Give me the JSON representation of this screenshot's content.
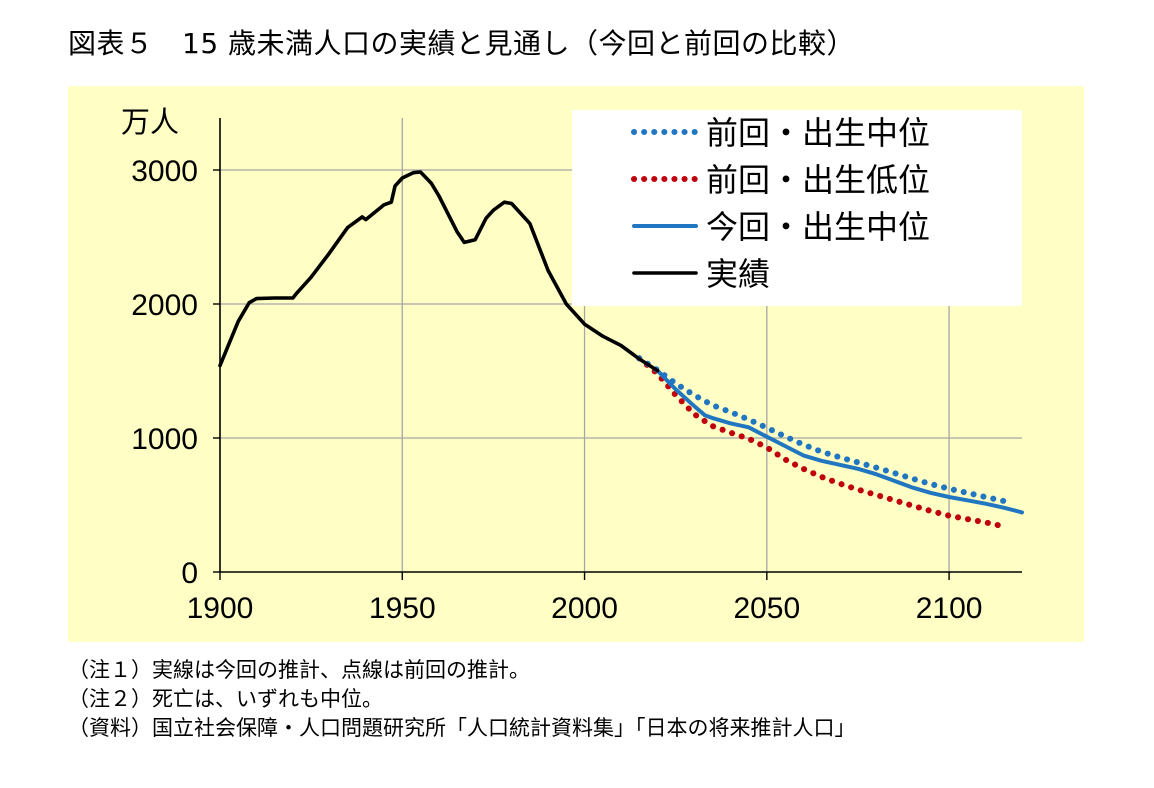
{
  "title": "図表５　15 歳未満人口の実績と見通し（今回と前回の比較）",
  "notes": [
    "（注１）実線は今回の推計、点線は前回の推計。",
    "（注２）死亡は、いずれも中位。",
    "（資料）国立社会保障・人口問題研究所「人口統計資料集」「日本の将来推計人口」"
  ],
  "colors": {
    "panel_background": "#ffffc5",
    "grid": "#a6a6a6",
    "actual": "#000000",
    "current_medium": "#2176c1",
    "previous_medium": "#2176c1",
    "previous_low": "#c0000c"
  },
  "chart_data": {
    "type": "line",
    "title": "15 歳未満人口の実績と見通し（今回と前回の比較）",
    "ylabel": "万人",
    "xlabel": "",
    "xlim": [
      1900,
      2120
    ],
    "ylim": [
      0,
      3000
    ],
    "x_ticks": [
      1900,
      1950,
      2000,
      2050,
      2100
    ],
    "y_ticks": [
      0,
      1000,
      2000,
      3000
    ],
    "grid": true,
    "legend_position": "top-right",
    "series": [
      {
        "name": "前回・出生中位",
        "style": "dotted",
        "color": "#2176c1",
        "x": [
          2015,
          2020,
          2025,
          2030,
          2035,
          2040,
          2045,
          2050,
          2055,
          2060,
          2065,
          2070,
          2075,
          2080,
          2085,
          2090,
          2095,
          2100,
          2105,
          2110,
          2115
        ],
        "y": [
          1595,
          1507,
          1407,
          1321,
          1246,
          1194,
          1138,
          1077,
          1012,
          951,
          898,
          856,
          818,
          779,
          738,
          696,
          656,
          622,
          590,
          560,
          530
        ]
      },
      {
        "name": "前回・出生低位",
        "style": "dotted",
        "color": "#c0000c",
        "x": [
          2015,
          2020,
          2025,
          2030,
          2035,
          2040,
          2045,
          2050,
          2055,
          2060,
          2065,
          2070,
          2075,
          2080,
          2085,
          2090,
          2095,
          2100,
          2105,
          2110,
          2115
        ],
        "y": [
          1595,
          1480,
          1320,
          1180,
          1090,
          1040,
          995,
          930,
          840,
          770,
          710,
          660,
          615,
          575,
          535,
          495,
          455,
          420,
          395,
          370,
          340
        ]
      },
      {
        "name": "今回・出生中位",
        "style": "solid",
        "color": "#2176c1",
        "x": [
          2020,
          2025,
          2030,
          2033,
          2035,
          2040,
          2045,
          2050,
          2055,
          2060,
          2065,
          2070,
          2075,
          2080,
          2085,
          2090,
          2095,
          2100,
          2105,
          2110,
          2115,
          2120
        ],
        "y": [
          1503,
          1363,
          1240,
          1170,
          1150,
          1110,
          1080,
          1010,
          940,
          870,
          830,
          800,
          770,
          730,
          680,
          630,
          590,
          560,
          535,
          510,
          480,
          445
        ]
      },
      {
        "name": "実績",
        "style": "solid",
        "color": "#000000",
        "x": [
          1900,
          1905,
          1908,
          1910,
          1915,
          1920,
          1921,
          1925,
          1930,
          1935,
          1939,
          1940,
          1945,
          1947,
          1948,
          1950,
          1953,
          1955,
          1958,
          1960,
          1965,
          1967,
          1970,
          1973,
          1975,
          1978,
          1980,
          1985,
          1990,
          1995,
          2000,
          2005,
          2010,
          2015,
          2020
        ],
        "y": [
          1540,
          1870,
          2010,
          2040,
          2045,
          2045,
          2080,
          2200,
          2380,
          2570,
          2650,
          2630,
          2740,
          2760,
          2880,
          2940,
          2980,
          2985,
          2900,
          2810,
          2540,
          2460,
          2480,
          2640,
          2700,
          2760,
          2750,
          2600,
          2250,
          2000,
          1850,
          1760,
          1690,
          1590,
          1503
        ]
      }
    ]
  }
}
